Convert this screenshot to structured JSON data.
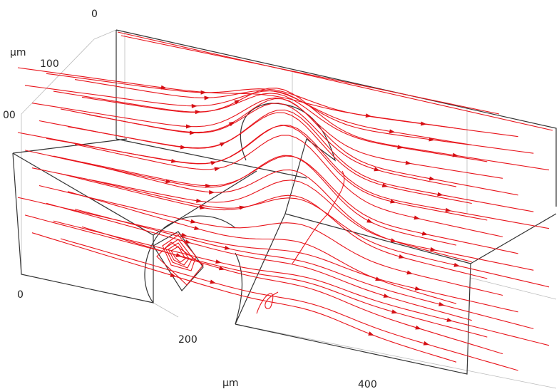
{
  "axis_labels": {
    "top_zero": "0",
    "unit_vertical": "μm",
    "label_100": "100",
    "label_200_cut": "00",
    "left_zero": "0",
    "label_200": "200",
    "unit_horizontal": "μm",
    "label_400": "400"
  }
}
